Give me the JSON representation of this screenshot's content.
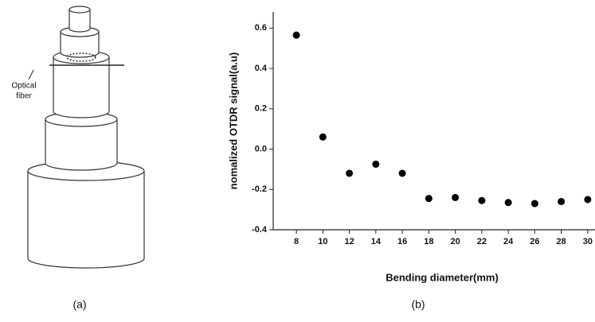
{
  "figure": {
    "panel_labels": [
      "(a)",
      "(b)"
    ],
    "annotation_line1": "Optical",
    "annotation_line2": "fiber"
  },
  "chart_data": {
    "type": "scatter",
    "x_label": "Bending diameter(mm)",
    "y_label": "nomalized OTDR signal(a.u)",
    "x": [
      8,
      10,
      12,
      14,
      16,
      18,
      20,
      22,
      24,
      26,
      28,
      30
    ],
    "series": [
      {
        "color": "#000000",
        "values": [
          0.565,
          0.06,
          -0.12,
          -0.075,
          -0.12,
          -0.245,
          -0.24,
          -0.255,
          -0.265,
          -0.27,
          -0.26,
          -0.25
        ]
      }
    ],
    "xlim": [
      6.25,
      30.55
    ],
    "ylim": [
      -0.4,
      0.68
    ],
    "xticks": [
      8,
      10,
      12,
      14,
      16,
      18,
      20,
      22,
      24,
      26,
      28,
      30
    ],
    "yticks": [
      -0.4,
      -0.2,
      {
        "value": 0,
        "label": "0.0"
      },
      0.2,
      0.4,
      0.6
    ]
  }
}
